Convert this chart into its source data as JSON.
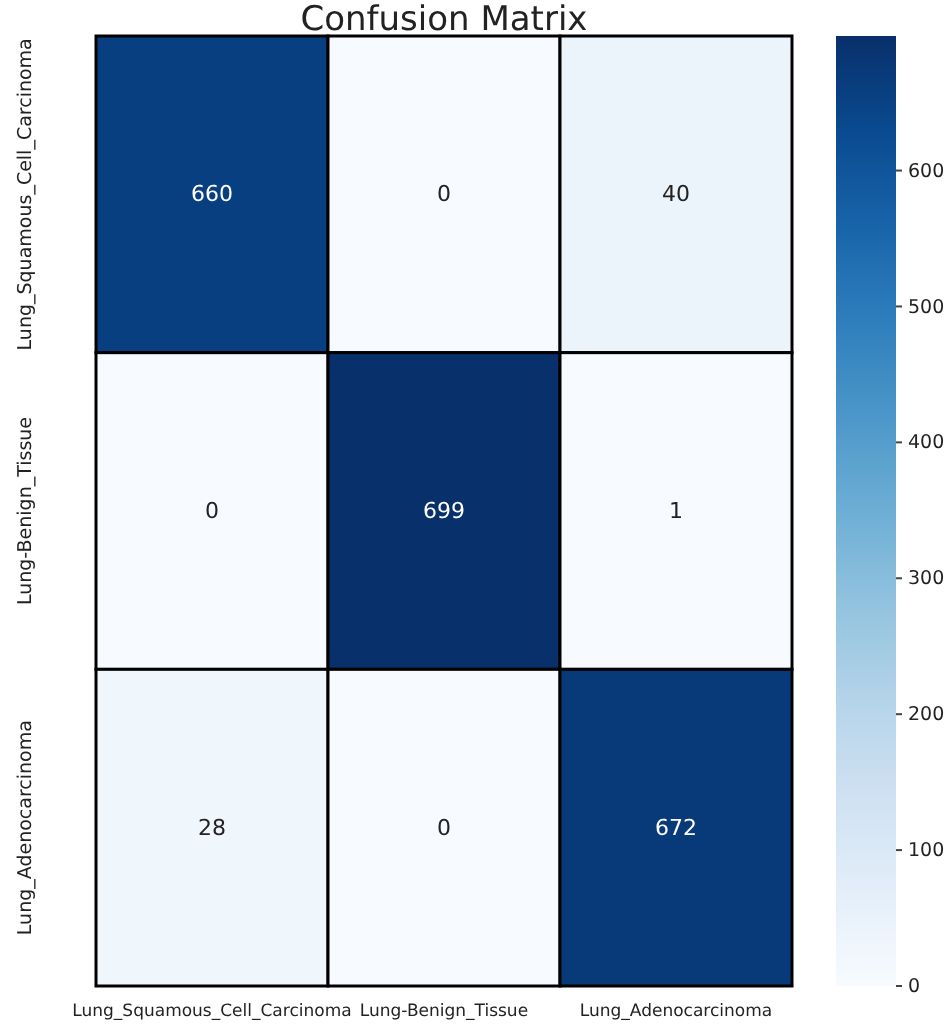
{
  "chart_data": {
    "type": "heatmap",
    "title": "Confusion Matrix",
    "categories": [
      "Lung_Squamous_Cell_Carcinoma",
      "Lung-Benign_Tissue",
      "Lung_Adenocarcinoma"
    ],
    "y_categories": [
      "Lung_Squamous_Cell_Carcinoma",
      "Lung-Benign_Tissue",
      "Lung_Adenocarcinoma"
    ],
    "cells": [
      [
        660,
        0,
        40
      ],
      [
        0,
        699,
        1
      ],
      [
        28,
        0,
        672
      ]
    ],
    "data_labels": true,
    "clim": [
      0,
      699
    ],
    "cticks": [
      0,
      100,
      200,
      300,
      400,
      500,
      600
    ]
  }
}
